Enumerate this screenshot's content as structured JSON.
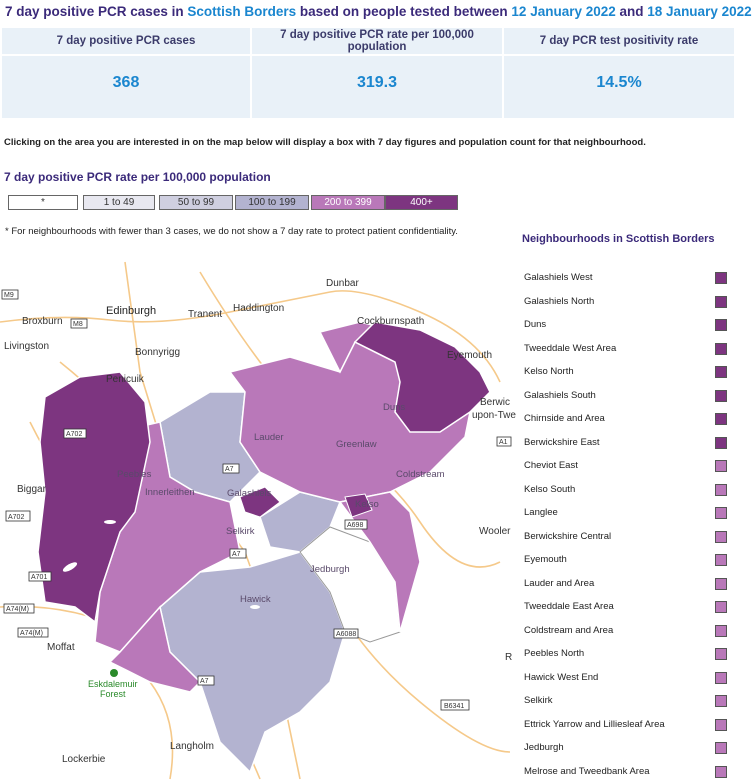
{
  "header": {
    "title_prefix": "7 day positive PCR cases in ",
    "area": "Scottish Borders",
    "title_mid": " based on people tested between ",
    "date_from": "12 January 2022",
    "and": " and ",
    "date_to": "18 January 2022"
  },
  "stats": [
    {
      "label": "7 day positive PCR cases",
      "value": "368"
    },
    {
      "label": "7 day positive PCR rate per 100,000 population",
      "value": "319.3"
    },
    {
      "label": "7 day PCR test positivity rate",
      "value": "14.5%"
    }
  ],
  "instructions": "Clicking on the area you are interested in on the map below will display a box with 7 day figures and population count for that neighbourhood.",
  "rate_title": "7 day positive PCR rate per 100,000 population",
  "legend": [
    {
      "label": "*",
      "color": "#ffffff",
      "text_color": "#333333"
    },
    {
      "label": "1 to 49",
      "color": "#e8e8f0",
      "text_color": "#333333"
    },
    {
      "label": "50 to 99",
      "color": "#cfcfe0",
      "text_color": "#333333"
    },
    {
      "label": "100 to 199",
      "color": "#b3b3d0",
      "text_color": "#333333"
    },
    {
      "label": "200 to 399",
      "color": "#b978b9",
      "text_color": "#ffffff"
    },
    {
      "label": "400+",
      "color": "#7d3580",
      "text_color": "#ffffff"
    }
  ],
  "footnote": "* For neighbourhoods with fewer than 3 cases, we do not show a 7 day rate to protect patient confidentiality.",
  "neighbourhoods_title": "Neighbourhoods in Scottish Borders",
  "neighbourhoods": [
    {
      "name": "Galashiels West",
      "color": "#7d3580"
    },
    {
      "name": "Galashiels North",
      "color": "#7d3580"
    },
    {
      "name": "Duns",
      "color": "#7d3580"
    },
    {
      "name": "Tweeddale West Area",
      "color": "#7d3580"
    },
    {
      "name": "Kelso North",
      "color": "#7d3580"
    },
    {
      "name": "Galashiels South",
      "color": "#7d3580"
    },
    {
      "name": "Chirnside and Area",
      "color": "#7d3580"
    },
    {
      "name": "Berwickshire East",
      "color": "#7d3580"
    },
    {
      "name": "Cheviot East",
      "color": "#b978b9"
    },
    {
      "name": "Kelso South",
      "color": "#b978b9"
    },
    {
      "name": "Langlee",
      "color": "#b978b9"
    },
    {
      "name": "Berwickshire Central",
      "color": "#b978b9"
    },
    {
      "name": "Eyemouth",
      "color": "#b978b9"
    },
    {
      "name": "Lauder and Area",
      "color": "#b978b9"
    },
    {
      "name": "Tweeddale East Area",
      "color": "#b978b9"
    },
    {
      "name": "Coldstream and Area",
      "color": "#b978b9"
    },
    {
      "name": "Peebles North",
      "color": "#b978b9"
    },
    {
      "name": "Hawick West End",
      "color": "#b978b9"
    },
    {
      "name": "Selkirk",
      "color": "#b978b9"
    },
    {
      "name": "Ettrick Yarrow and Lilliesleaf Area",
      "color": "#b978b9"
    },
    {
      "name": "Jedburgh",
      "color": "#b978b9"
    },
    {
      "name": "Melrose and Tweedbank Area",
      "color": "#b978b9"
    }
  ],
  "map": {
    "places": {
      "dunbar": "Dunbar",
      "edinburgh": "Edinburgh",
      "haddington": "Haddington",
      "tranent": "Tranent",
      "broxburn": "Broxburn",
      "livingston": "Livingston",
      "bonnyrigg": "Bonnyrigg",
      "penicuik": "Penicuik",
      "cockburnspath": "Cockburnspath",
      "eyemouth": "Eyemouth",
      "duns": "Duns",
      "berwick1": "Berwic",
      "berwick2": "upon-Twe",
      "lauder": "Lauder",
      "greenlaw": "Greenlaw",
      "peebles": "Peebles",
      "innerleithen": "Innerleithen",
      "galashiels": "Galashiels",
      "coldstream": "Coldstream",
      "kelso": "Kelso",
      "biggar": "Biggar",
      "selkirk": "Selkirk",
      "wooler": "Wooler",
      "jedburgh": "Jedburgh",
      "hawick": "Hawick",
      "moffat": "Moffat",
      "eskdalemuir1": "Eskdalemuir",
      "eskdalemuir2": "Forest",
      "langholm": "Langholm",
      "lockerbie": "Lockerbie",
      "side_r": "R"
    },
    "roads": {
      "m9": "M9",
      "m8": "M8",
      "a702a": "A702",
      "a702b": "A702",
      "a7a": "A7",
      "a7b": "A7",
      "a7c": "A7",
      "a701": "A701",
      "a74m1": "A74(M)",
      "a74m2": "A74(M)",
      "a1": "A1",
      "a698": "A698",
      "a6088": "A6088",
      "b6341": "B6341"
    },
    "colors": {
      "dark": "#7d3580",
      "mid": "#b978b9",
      "light": "#b3b3d0",
      "white": "#ffffff",
      "road": "#f5c98a",
      "water": "#ffffff"
    }
  }
}
